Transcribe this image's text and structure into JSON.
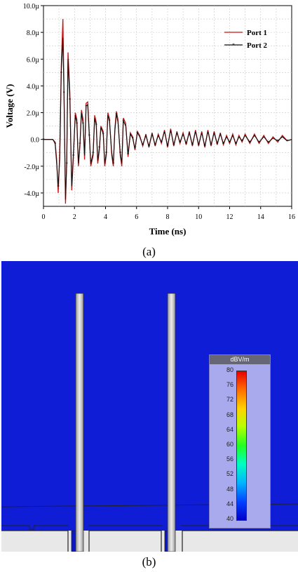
{
  "chart_data": {
    "type": "line",
    "xlabel": "Time (ns)",
    "ylabel": "Voltage (V)",
    "xlim": [
      0,
      16
    ],
    "ylim": [
      -5,
      10
    ],
    "x_ticks": [
      "0",
      "2",
      "4",
      "6",
      "8",
      "10",
      "12",
      "14",
      "16"
    ],
    "y_ticks": [
      "10.0µ",
      "8.0µ",
      "6.0µ",
      "4.0µ",
      "2.0µ",
      "0.0",
      "-2.0µ",
      "-4.0µ"
    ],
    "y_tick_values": [
      10,
      8,
      6,
      4,
      2,
      0,
      -2,
      -4
    ],
    "grid": true,
    "legend_position": "top-right",
    "series": [
      {
        "name": "Port 1",
        "color": "#cc1111",
        "x": [
          0,
          0.6,
          0.75,
          0.85,
          0.95,
          1.05,
          1.15,
          1.25,
          1.32,
          1.42,
          1.5,
          1.58,
          1.7,
          1.82,
          1.92,
          2.05,
          2.15,
          2.25,
          2.35,
          2.45,
          2.55,
          2.65,
          2.75,
          2.85,
          2.95,
          3.05,
          3.2,
          3.3,
          3.4,
          3.5,
          3.6,
          3.7,
          3.85,
          3.95,
          4.05,
          4.15,
          4.25,
          4.4,
          4.5,
          4.6,
          4.7,
          4.8,
          4.95,
          5.05,
          5.15,
          5.3,
          5.45,
          5.6,
          5.75,
          5.9,
          6.05,
          6.2,
          6.4,
          6.6,
          6.8,
          7,
          7.2,
          7.4,
          7.6,
          7.8,
          8,
          8.2,
          8.4,
          8.6,
          8.8,
          9,
          9.2,
          9.4,
          9.6,
          9.8,
          10,
          10.2,
          10.4,
          10.6,
          10.8,
          11,
          11.2,
          11.4,
          11.6,
          11.8,
          12,
          12.2,
          12.4,
          12.6,
          12.8,
          13,
          13.3,
          13.6,
          13.9,
          14.2,
          14.5,
          14.8,
          15.1,
          15.4,
          15.7,
          16
        ],
        "y": [
          0,
          0,
          -0.2,
          -1.5,
          -4.0,
          -1.0,
          5.5,
          9.0,
          4.0,
          -4.8,
          -1.5,
          6.5,
          3.5,
          -3.8,
          -1.5,
          2.0,
          1.5,
          -2.0,
          -0.5,
          2.2,
          1.5,
          -1.5,
          2.7,
          2.8,
          0.5,
          -2.0,
          -1.2,
          1.8,
          1.3,
          -1.8,
          -0.8,
          1.0,
          0.6,
          -2.0,
          -1.2,
          2.0,
          1.6,
          -1.2,
          -2.0,
          0.8,
          2.1,
          1.5,
          -1.2,
          -2.0,
          1.6,
          1.2,
          -1.3,
          0.5,
          0.2,
          -0.8,
          0.6,
          0.3,
          -0.5,
          0.4,
          -0.6,
          0.5,
          -0.5,
          0.4,
          -0.3,
          0.7,
          -0.6,
          0.8,
          -0.5,
          0.6,
          -0.3,
          0.5,
          -0.4,
          0.6,
          -0.5,
          0.7,
          -0.5,
          0.6,
          -0.6,
          0.7,
          -0.5,
          0.6,
          -0.4,
          0.5,
          -0.4,
          0.3,
          -0.3,
          0.4,
          -0.4,
          0.3,
          -0.2,
          0.4,
          -0.3,
          0.4,
          -0.3,
          0.3,
          -0.3,
          0.2,
          -0.2,
          0.3,
          -0.1,
          0
        ]
      },
      {
        "name": "Port 2",
        "color": "#111111",
        "x": [
          0,
          0.6,
          0.75,
          0.85,
          0.95,
          1.05,
          1.15,
          1.25,
          1.32,
          1.42,
          1.5,
          1.58,
          1.7,
          1.82,
          1.92,
          2.05,
          2.15,
          2.25,
          2.35,
          2.45,
          2.55,
          2.65,
          2.75,
          2.85,
          2.95,
          3.05,
          3.2,
          3.3,
          3.4,
          3.5,
          3.6,
          3.7,
          3.85,
          3.95,
          4.05,
          4.15,
          4.25,
          4.4,
          4.5,
          4.6,
          4.7,
          4.8,
          4.95,
          5.05,
          5.15,
          5.3,
          5.45,
          5.6,
          5.75,
          5.9,
          6.05,
          6.2,
          6.4,
          6.6,
          6.8,
          7,
          7.2,
          7.4,
          7.6,
          7.8,
          8,
          8.2,
          8.4,
          8.6,
          8.8,
          9,
          9.2,
          9.4,
          9.6,
          9.8,
          10,
          10.2,
          10.4,
          10.6,
          10.8,
          11,
          11.2,
          11.4,
          11.6,
          11.8,
          12,
          12.2,
          12.4,
          12.6,
          12.8,
          13,
          13.3,
          13.6,
          13.9,
          14.2,
          14.5,
          14.8,
          15.1,
          15.4,
          15.7,
          16
        ],
        "y": [
          0,
          0,
          -0.3,
          -1.8,
          -3.5,
          -1.5,
          5.0,
          7.6,
          3.5,
          -4.5,
          -1.8,
          6.0,
          3.0,
          -3.5,
          -1.2,
          1.8,
          1.2,
          -1.8,
          -0.3,
          2.0,
          1.2,
          -1.2,
          2.5,
          2.6,
          0.3,
          -1.8,
          -1.0,
          1.6,
          1.1,
          -1.6,
          -0.6,
          0.9,
          0.4,
          -1.8,
          -1.0,
          1.8,
          1.4,
          -1.0,
          -1.8,
          0.6,
          1.9,
          1.3,
          -1.0,
          -1.8,
          1.4,
          1.0,
          -1.1,
          0.4,
          0.1,
          -0.7,
          0.5,
          0.2,
          -0.4,
          0.3,
          -0.5,
          0.4,
          -0.4,
          0.3,
          -0.2,
          0.6,
          -0.5,
          0.7,
          -0.4,
          0.5,
          -0.2,
          0.4,
          -0.3,
          0.5,
          -0.4,
          0.6,
          -0.4,
          0.5,
          -0.5,
          0.6,
          -0.4,
          0.5,
          -0.3,
          0.4,
          -0.3,
          0.2,
          -0.2,
          0.3,
          -0.3,
          0.2,
          -0.1,
          0.3,
          -0.2,
          0.3,
          -0.2,
          0.2,
          -0.2,
          0.1,
          -0.1,
          0.2,
          -0.1,
          0
        ]
      }
    ]
  },
  "captions": {
    "a": "(a)",
    "b": "(b)"
  },
  "colorbar": {
    "title": "dBV/m",
    "ticks": [
      "80",
      "76",
      "72",
      "68",
      "64",
      "60",
      "56",
      "52",
      "48",
      "44",
      "40"
    ]
  }
}
